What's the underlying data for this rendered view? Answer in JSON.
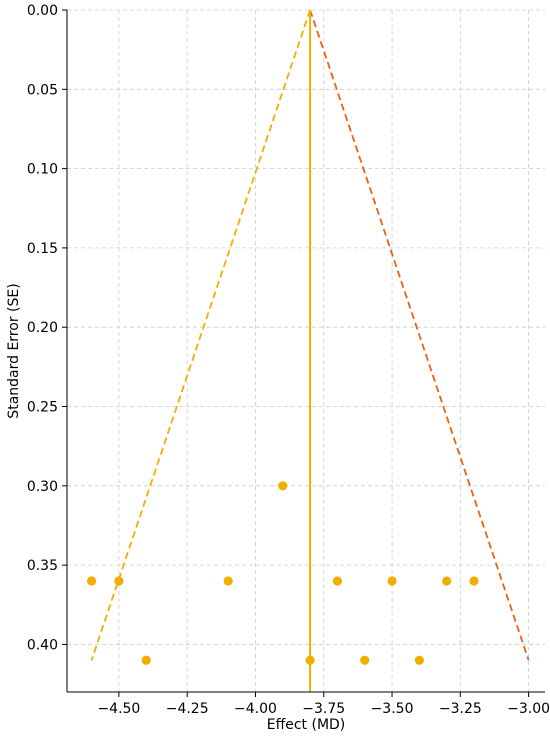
{
  "chart_data": {
    "type": "scatter",
    "title": "",
    "xlabel": "Effect (MD)",
    "ylabel": "Standard Error (SE)",
    "xlim": [
      -4.69,
      -2.94
    ],
    "ylim": [
      0.43,
      0.0
    ],
    "y_inverted": true,
    "grid": true,
    "x_ticks": [
      -4.5,
      -4.25,
      -4.0,
      -3.75,
      -3.5,
      -3.25,
      -3.0
    ],
    "x_tick_labels": [
      "−4.50",
      "−4.25",
      "−4.00",
      "−3.75",
      "−3.50",
      "−3.25",
      "−3.00"
    ],
    "y_ticks": [
      0.0,
      0.05,
      0.1,
      0.15,
      0.2,
      0.25,
      0.3,
      0.35,
      0.4
    ],
    "y_tick_labels": [
      "0.00",
      "0.05",
      "0.10",
      "0.15",
      "0.20",
      "0.25",
      "0.30",
      "0.35",
      "0.40"
    ],
    "points": [
      {
        "x": -3.9,
        "y": 0.3
      },
      {
        "x": -4.6,
        "y": 0.36
      },
      {
        "x": -4.5,
        "y": 0.36
      },
      {
        "x": -4.1,
        "y": 0.36
      },
      {
        "x": -3.7,
        "y": 0.36
      },
      {
        "x": -3.5,
        "y": 0.36
      },
      {
        "x": -3.3,
        "y": 0.36
      },
      {
        "x": -3.2,
        "y": 0.36
      },
      {
        "x": -4.4,
        "y": 0.41
      },
      {
        "x": -3.8,
        "y": 0.41
      },
      {
        "x": -3.6,
        "y": 0.41
      },
      {
        "x": -3.4,
        "y": 0.41
      }
    ],
    "pooled_effect": -3.8,
    "funnel_left": [
      [
        -3.8,
        0.0
      ],
      [
        -4.6,
        0.41
      ]
    ],
    "funnel_right": [
      [
        -3.8,
        0.0
      ],
      [
        -3.0,
        0.41
      ]
    ],
    "colors": {
      "points": "#f2ae00",
      "center_line": "#f2ae00",
      "left_funnel": "#f2ae00",
      "right_funnel": "#ee6010",
      "grid": "#cccccc",
      "axis": "#000000"
    }
  }
}
